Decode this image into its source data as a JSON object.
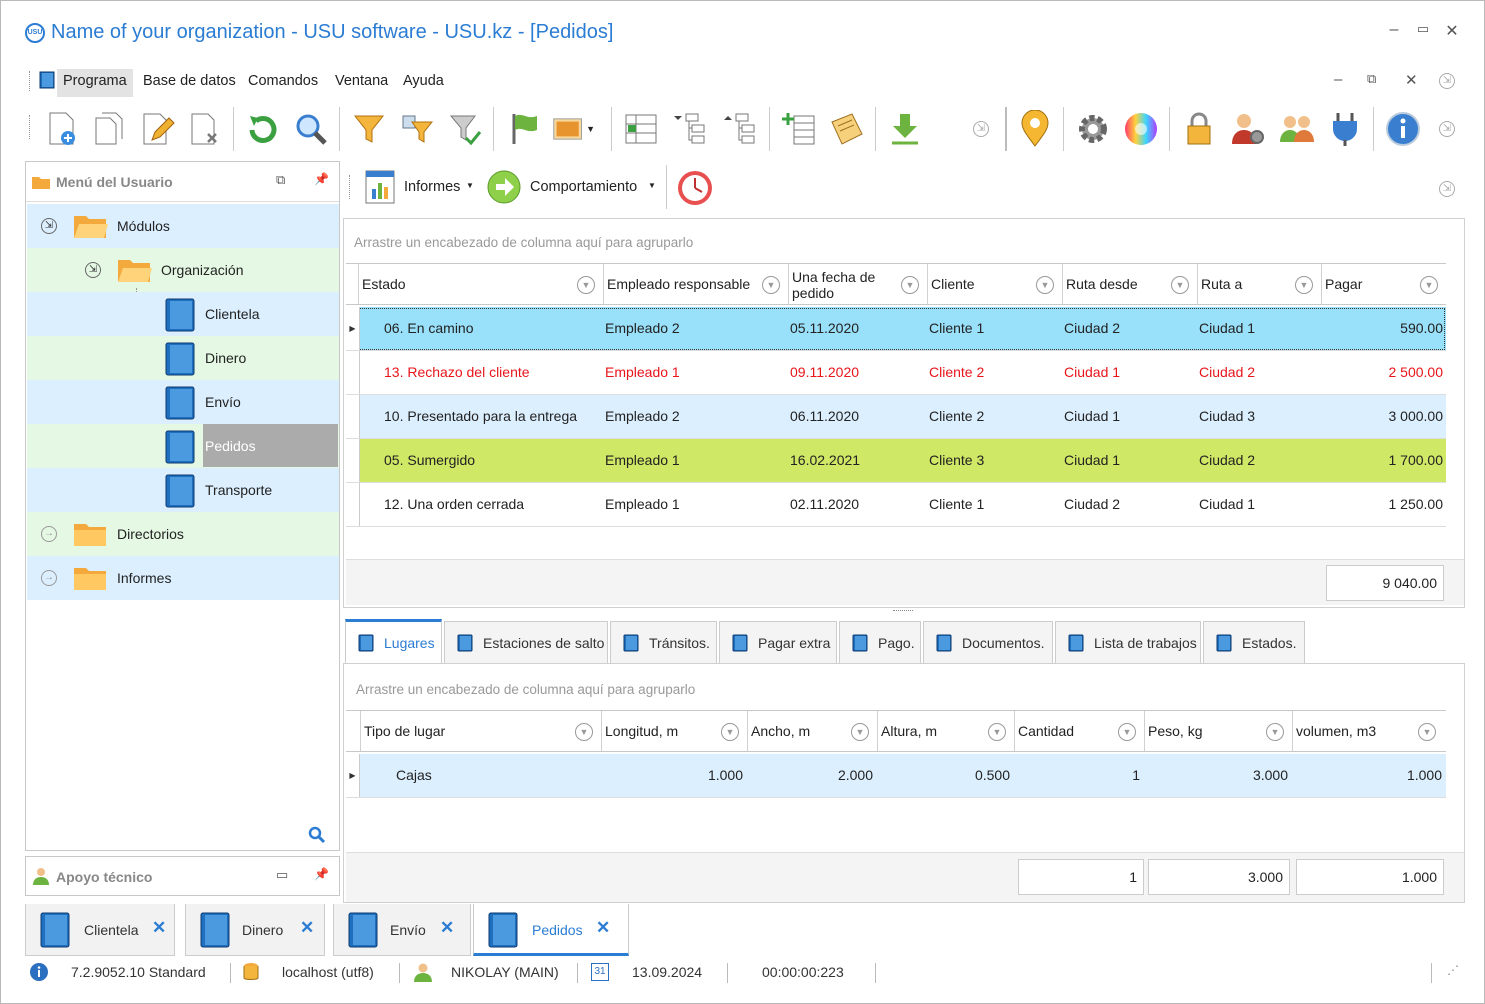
{
  "window": {
    "title": "Name of your organization - USU software - USU.kz - [Pedidos]",
    "logo": "USU"
  },
  "menu": [
    "Programa",
    "Base de datos",
    "Comandos",
    "Ventana",
    "Ayuda"
  ],
  "left_panel": {
    "title": "Menú del Usuario",
    "support_title": "Apoyo técnico",
    "tree": [
      {
        "label": "Módulos"
      },
      {
        "label": "Organización"
      },
      {
        "label": "Clientela"
      },
      {
        "label": "Dinero"
      },
      {
        "label": "Envío"
      },
      {
        "label": "Pedidos"
      },
      {
        "label": "Transporte"
      },
      {
        "label": "Directorios"
      },
      {
        "label": "Informes"
      }
    ]
  },
  "ribbon2": {
    "reports": "Informes",
    "behavior": "Comportamiento"
  },
  "grid1": {
    "group_hint": "Arrastre un encabezado de columna aquí para agruparlo",
    "columns": [
      "Estado",
      "Empleado responsable",
      "Una fecha de pedido",
      "Cliente",
      "Ruta desde",
      "Ruta a",
      "Pagar"
    ],
    "rows": [
      [
        "06. En camino",
        "Empleado 2",
        "05.11.2020",
        "Cliente 1",
        "Ciudad 2",
        "Ciudad 1",
        "590.00"
      ],
      [
        "13. Rechazo del cliente",
        "Empleado 1",
        "09.11.2020",
        "Cliente 2",
        "Ciudad 1",
        "Ciudad 2",
        "2 500.00"
      ],
      [
        "10. Presentado para la entrega",
        "Empleado 2",
        "06.11.2020",
        "Cliente 2",
        "Ciudad 1",
        "Ciudad 3",
        "3 000.00"
      ],
      [
        "05. Sumergido",
        "Empleado 1",
        "16.02.2021",
        "Cliente 3",
        "Ciudad 1",
        "Ciudad 2",
        "1 700.00"
      ],
      [
        "12. Una orden cerrada",
        "Empleado 1",
        "02.11.2020",
        "Cliente 1",
        "Ciudad 2",
        "Ciudad 1",
        "1 250.00"
      ]
    ],
    "row_colors": [
      "#99e0fa",
      "#ffffff",
      "#dcefff",
      "#cfe865",
      "#ffffff"
    ],
    "row_text_colors": [
      "#222",
      "#e8151b",
      "#222",
      "#222",
      "#222"
    ],
    "total": "9 040.00"
  },
  "tabs": [
    "Lugares",
    "Estaciones de salto",
    "Tránsitos.",
    "Pagar extra",
    "Pago.",
    "Documentos.",
    "Lista de trabajos",
    "Estados."
  ],
  "grid2": {
    "group_hint": "Arrastre un encabezado de columna aquí para agruparlo",
    "columns": [
      "Tipo de lugar",
      "Longitud, m",
      "Ancho, m",
      "Altura, m",
      "Cantidad",
      "Peso, kg",
      "volumen, m3"
    ],
    "rows": [
      [
        "Cajas",
        "1.000",
        "2.000",
        "0.500",
        "1",
        "3.000",
        "1.000"
      ]
    ],
    "totals": [
      "1",
      "3.000",
      "1.000"
    ]
  },
  "doc_tabs": [
    "Clientela",
    "Dinero",
    "Envío",
    "Pedidos"
  ],
  "status": {
    "version": "7.2.9052.10 Standard",
    "db": "localhost (utf8)",
    "user": "NIKOLAY (MAIN)",
    "date": "13.09.2024",
    "calendar_day": "31",
    "timer": "00:00:00:223"
  }
}
